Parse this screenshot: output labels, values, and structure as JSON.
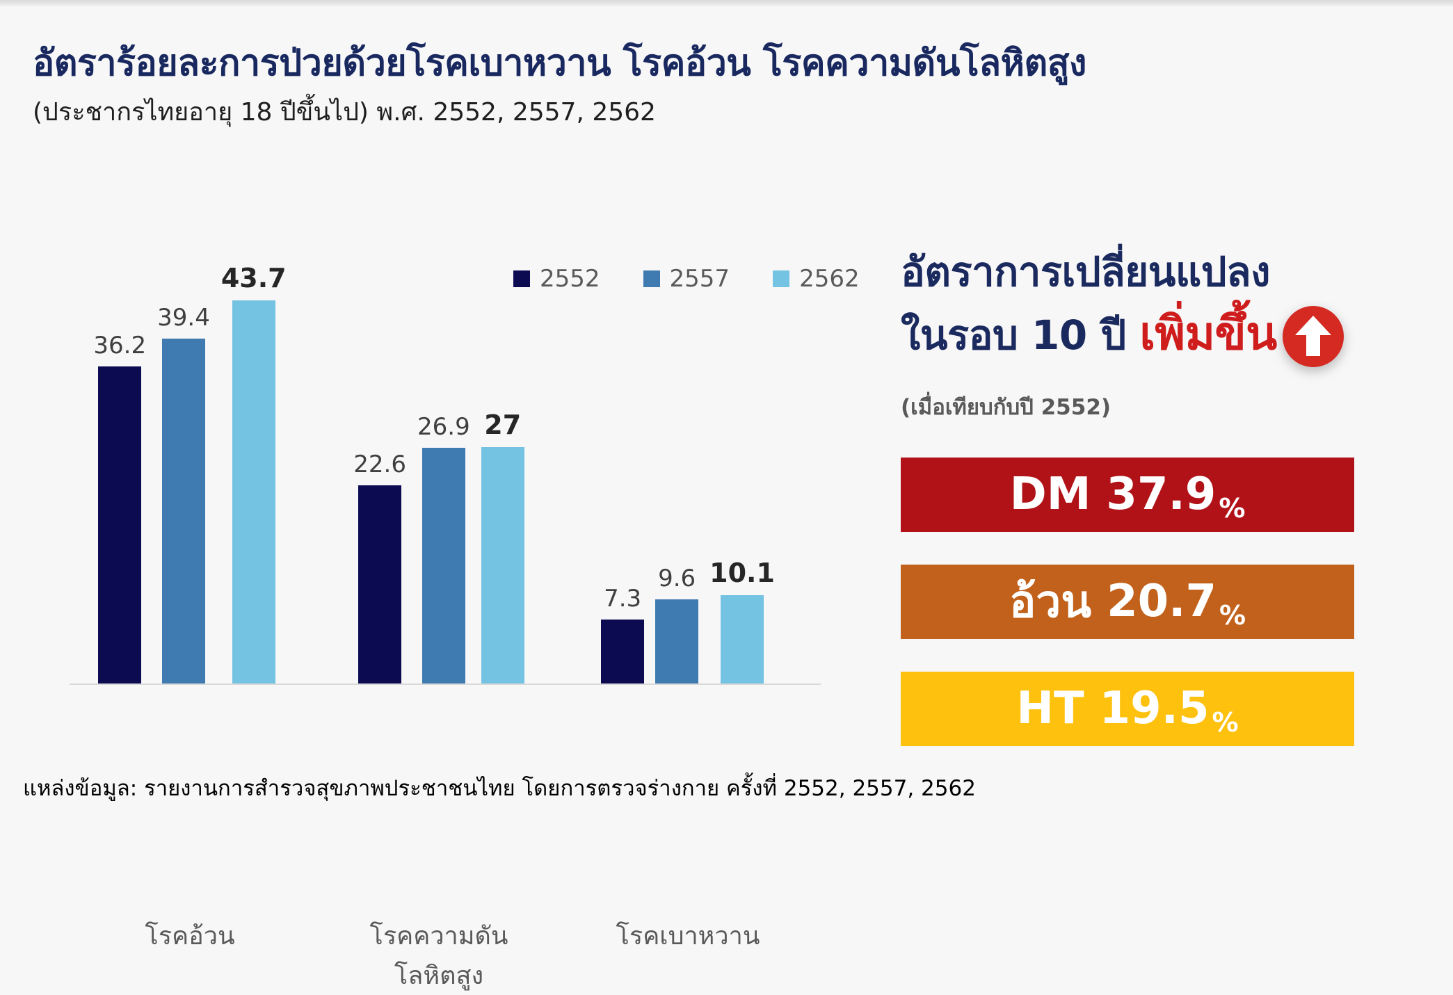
{
  "page": {
    "background": "#f7f7f8"
  },
  "header": {
    "title": "อัตราร้อยละการป่วยด้วยโรคเบาหวาน โรคอ้วน โรคความดันโลหิตสูง",
    "subtitle": "(ประชากรไทยอายุ 18 ปีขึ้นไป) พ.ศ. 2552, 2557, 2562"
  },
  "chart_data": {
    "type": "bar",
    "categories": [
      "โรคอ้วน",
      "โรคความดันโลหิตสูง",
      "โรคเบาหวาน"
    ],
    "series": [
      {
        "name": "2552",
        "color": "#0c0b52",
        "values": [
          36.2,
          22.6,
          7.3
        ]
      },
      {
        "name": "2557",
        "color": "#3f7ab0",
        "values": [
          39.4,
          26.9,
          9.6
        ]
      },
      {
        "name": "2562",
        "color": "#74c3e2",
        "values": [
          43.7,
          27,
          10.1
        ]
      }
    ],
    "value_labels": [
      [
        "36.2",
        "39.4",
        "43.7"
      ],
      [
        "22.6",
        "26.9",
        "27"
      ],
      [
        "7.3",
        "9.6",
        "10.1"
      ]
    ],
    "title": "",
    "xlabel": "",
    "ylabel": "",
    "ylim": [
      0,
      50
    ],
    "grid": false,
    "legend_position": "top-center",
    "axis_line_color": "#d9d9d9",
    "label_color_regular": "#3f3f3f",
    "label_color_emphasis": "#262626"
  },
  "side_panel": {
    "heading_line1": "อัตราการเปลี่ยนแปลง",
    "heading_line2": "ในรอบ 10 ปี",
    "heading_highlight": "เพิ่มขึ้น",
    "arrow_icon": "up-arrow-in-red-circle",
    "arrow_color": "#d42a22",
    "note": "(เมื่อเทียบกับปี 2552)",
    "stats": [
      {
        "label": "DM",
        "value": "37.9",
        "unit": "%",
        "color": "#b11217"
      },
      {
        "label": "อ้วน",
        "value": "20.7",
        "unit": "%",
        "color": "#c2611b"
      },
      {
        "label": "HT",
        "value": "19.5",
        "unit": "%",
        "color": "#fec10d"
      }
    ]
  },
  "footer": {
    "source": "แหล่งข้อมูล: รายงานการสำรวจสุขภาพประชาชนไทย โดยการตรวจร่างกาย ครั้งที่ 2552, 2557, 2562"
  }
}
